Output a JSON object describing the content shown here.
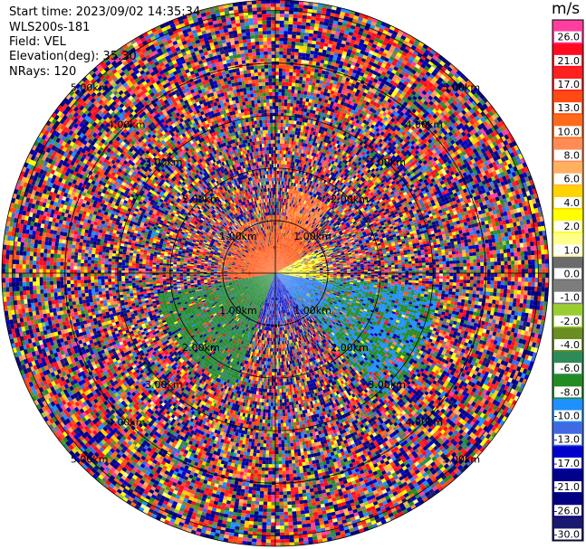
{
  "info": {
    "start_time": "Start time: 2023/09/02 14:35:34",
    "instrument": "WLS200s-181",
    "field": "Field: VEL",
    "elevation": "Elevation(deg): 35.30",
    "nrays": "NRays: 120"
  },
  "chart_data": {
    "type": "heatmap",
    "projection": "polar-ppi",
    "field": "VEL",
    "unit": "m/s",
    "n_rays": 120,
    "range_rings_km": [
      1.0,
      2.0,
      3.0,
      4.0,
      5.0
    ],
    "range_labels": [
      "1.00km",
      "2.00km",
      "3.00km",
      "4.00km",
      "5.00km"
    ],
    "max_range_km": 5.2,
    "colorbar": {
      "label": "m/s",
      "ticks": [
        "26.0",
        "21.0",
        "17.0",
        "13.0",
        "10.0",
        "8.0",
        "6.0",
        "4.0",
        "2.0",
        "1.0",
        "0.0",
        "-1.0",
        "-2.0",
        "-4.0",
        "-6.0",
        "-8.0",
        "-10.0",
        "-13.0",
        "-17.0",
        "-21.0",
        "-26.0",
        "-30.0"
      ],
      "colors": [
        "#ff3fa0",
        "#ff0a1e",
        "#ff2020",
        "#ff4a14",
        "#ff6a1a",
        "#ff8c55",
        "#ffb060",
        "#ffd200",
        "#ffff00",
        "#ffff8c",
        "#6b6b6b",
        "#7d7d7d",
        "#9acd32",
        "#6b8e23",
        "#2e8b57",
        "#228b22",
        "#1e90ff",
        "#4169e1",
        "#0000cd",
        "#00008b",
        "#000080",
        "#191970"
      ]
    },
    "near_field": {
      "range_km": 1.1,
      "sectors": [
        {
          "az_from": 260,
          "az_to": 60,
          "velocity": 13.0
        },
        {
          "az_from": 60,
          "az_to": 100,
          "velocity": 2.0
        },
        {
          "az_from": 100,
          "az_to": 145,
          "velocity": -10.0
        },
        {
          "az_from": 145,
          "az_to": 200,
          "velocity": -13.0
        },
        {
          "az_from": 200,
          "az_to": 260,
          "velocity": -6.0
        }
      ]
    },
    "coherent_plumes": [
      {
        "az_from": 95,
        "az_to": 140,
        "range_from_km": 0.3,
        "range_to_km": 3.1,
        "velocity": -8.0
      },
      {
        "az_from": 10,
        "az_to": 40,
        "range_from_km": 0.3,
        "range_to_km": 1.6,
        "velocity": 10.0
      },
      {
        "az_from": 200,
        "az_to": 260,
        "range_from_km": 0.3,
        "range_to_km": 2.3,
        "velocity": -6.0
      }
    ]
  }
}
